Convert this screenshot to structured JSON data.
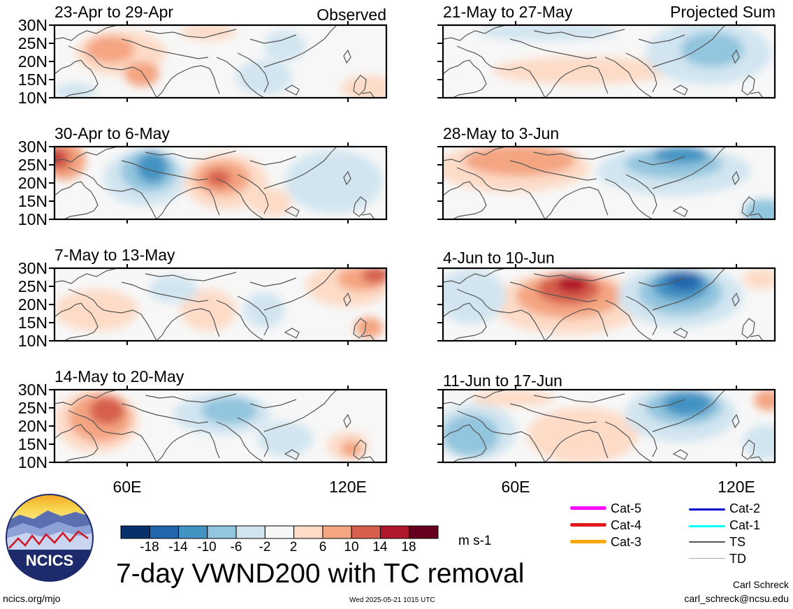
{
  "columns": [
    {
      "label": "Observed"
    },
    {
      "label": "Projected Sum"
    }
  ],
  "panels": [
    {
      "title": "23-Apr to 29-Apr"
    },
    {
      "title": "30-Apr to 6-May"
    },
    {
      "title": "7-May to 13-May"
    },
    {
      "title": "14-May to 20-May"
    },
    {
      "title": "21-May to 27-May"
    },
    {
      "title": "28-May to 3-Jun"
    },
    {
      "title": "4-Jun to 10-Jun"
    },
    {
      "title": "11-Jun to 17-Jun"
    }
  ],
  "lat_labels": [
    "30N",
    "25N",
    "20N",
    "15N",
    "10N"
  ],
  "lon_labels": [
    "60E",
    "120E"
  ],
  "colorbar": {
    "labels": [
      "-18",
      "-14",
      "-10",
      "-6",
      "-2",
      "2",
      "6",
      "10",
      "14",
      "18"
    ],
    "colors": [
      "#08306b",
      "#2166ac",
      "#4393c3",
      "#92c5de",
      "#d1e5f0",
      "#f7f7f7",
      "#fddbc7",
      "#f4a582",
      "#d6604d",
      "#b2182b",
      "#67001f"
    ],
    "units": "m s-1"
  },
  "title": "7-day VWND200 with TC removal",
  "logo": {
    "text": "NCICS"
  },
  "footer": {
    "url": "ncics.org/mjo",
    "timestamp": "Wed 2025-05-21 1015 UTC",
    "author": "Carl Schreck",
    "email": "carl_schreck@ncsu.edu"
  },
  "legend": [
    {
      "label": "Cat-5",
      "color": "#ff00ff"
    },
    {
      "label": "Cat-4",
      "color": "#e31a1c"
    },
    {
      "label": "Cat-3",
      "color": "#ffa500"
    },
    {
      "label": "Cat-2",
      "color": "#0000cd"
    },
    {
      "label": "Cat-1",
      "color": "#00ffff"
    },
    {
      "label": "TS",
      "color": "#555555"
    },
    {
      "label": "TD",
      "color": "#aaaaaa"
    }
  ]
}
